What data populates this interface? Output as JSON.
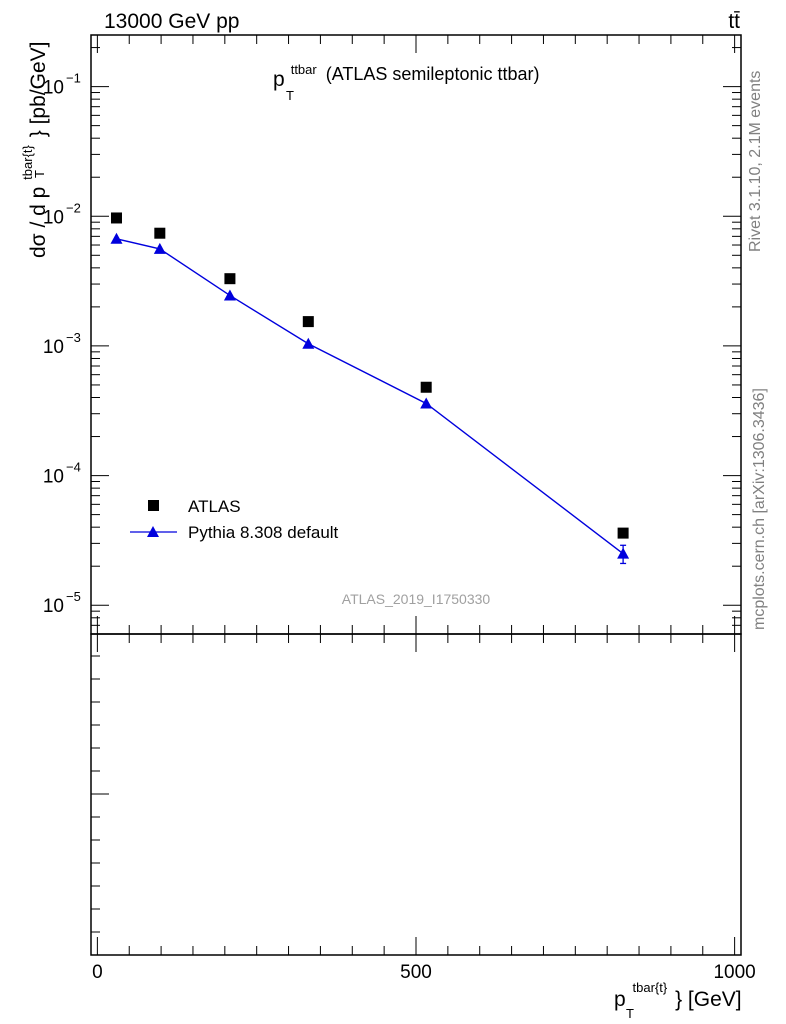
{
  "header": {
    "energy_label": "13000 GeV pp",
    "process_label": "tt̄"
  },
  "side_labels": {
    "rivet": "Rivet 3.1.10,  2.1M events",
    "mcplots": "mcplots.cern.ch [arXiv:1306.3436]"
  },
  "title": {
    "symbol": "p",
    "superscript": "ttbar",
    "subscript": "T",
    "text": "(ATLAS semileptonic ttbar)"
  },
  "watermark": "ATLAS_2019_I1750330",
  "y_axis_label": {
    "prefix": "dσ / d p",
    "superscript": "tbar{t}",
    "subscript": "T",
    "suffix": "} [pb/GeV]"
  },
  "x_axis_label": {
    "symbol": "p",
    "superscript": "tbar{t}",
    "subscript": "T",
    "suffix": "} [GeV]"
  },
  "chart_data": {
    "type": "scatter",
    "xlim": [
      -10,
      1010
    ],
    "ylim": [
      6e-06,
      0.25
    ],
    "ylog": true,
    "x_ticks": [
      0,
      500,
      1000
    ],
    "x_tick_labels": [
      "0",
      "500",
      "1000"
    ],
    "y_ticks": [
      0.1,
      0.01,
      0.001,
      0.0001,
      1e-05
    ],
    "y_tick_labels": [
      {
        "base": "10",
        "exp": "−1"
      },
      {
        "base": "10",
        "exp": "−2"
      },
      {
        "base": "10",
        "exp": "−3"
      },
      {
        "base": "10",
        "exp": "−4"
      },
      {
        "base": "10",
        "exp": "−5"
      }
    ],
    "legend_position": "bottom-left",
    "series": [
      {
        "name": "ATLAS",
        "marker": "square",
        "line": false,
        "color": "#000000",
        "x": [
          30,
          98,
          208,
          331,
          516,
          825
        ],
        "y": [
          0.0097,
          0.0074,
          0.0033,
          0.00154,
          0.00048,
          3.6e-05
        ]
      },
      {
        "name": "Pythia 8.308 default",
        "marker": "triangle",
        "line": true,
        "color": "#0000dd",
        "x": [
          30,
          98,
          208,
          331,
          516,
          825
        ],
        "y": [
          0.0067,
          0.0056,
          0.00245,
          0.00104,
          0.00036,
          2.5e-05
        ],
        "yerr": [
          0,
          0,
          0,
          0,
          0,
          4e-06
        ]
      }
    ]
  }
}
